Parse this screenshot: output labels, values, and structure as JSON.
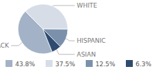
{
  "chart_data": {
    "type": "pie",
    "categories": [
      "BLACK",
      "WHITE",
      "HISPANIC",
      "ASIAN"
    ],
    "values": [
      43.8,
      37.5,
      12.5,
      6.3
    ],
    "value_labels": [
      "43.8%",
      "37.5%",
      "12.5%",
      "6.3%"
    ],
    "colors": [
      "#a3b2c6",
      "#d6dde7",
      "#7b91ab",
      "#2f4b6f"
    ],
    "legend": "bottom"
  }
}
